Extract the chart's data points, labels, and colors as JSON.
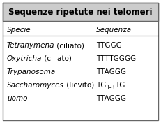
{
  "title": "Sequenze ripetute nei telomeri",
  "header_bg": "#cccccc",
  "table_bg": "#ffffff",
  "border_color": "#666666",
  "col1_header": "Specie",
  "col2_header": "Sequenza",
  "rows": [
    {
      "specie_italic": "Tetrahymena",
      "specie_rest": " (ciliato)",
      "sequenza": "TTGGG",
      "sub": "",
      "sequenza2": ""
    },
    {
      "specie_italic": "Oxytricha",
      "specie_rest": " (ciliato)",
      "sequenza": "TTTTGGGG",
      "sub": "",
      "sequenza2": ""
    },
    {
      "specie_italic": "Trypanosoma",
      "specie_rest": "",
      "sequenza": "TTAGGG",
      "sub": "",
      "sequenza2": ""
    },
    {
      "specie_italic": "Saccharomyces",
      "specie_rest": " (lievito)",
      "sequenza": "TG",
      "sub": "1-3",
      "sequenza2": "TG"
    },
    {
      "specie_italic": "uomo",
      "specie_rest": "",
      "sequenza": "TTAGGG",
      "sub": "",
      "sequenza2": ""
    }
  ],
  "figsize": [
    2.31,
    1.76
  ],
  "dpi": 100,
  "title_fontsize": 8.5,
  "body_fontsize": 7.5,
  "sub_fontsize": 5.5
}
